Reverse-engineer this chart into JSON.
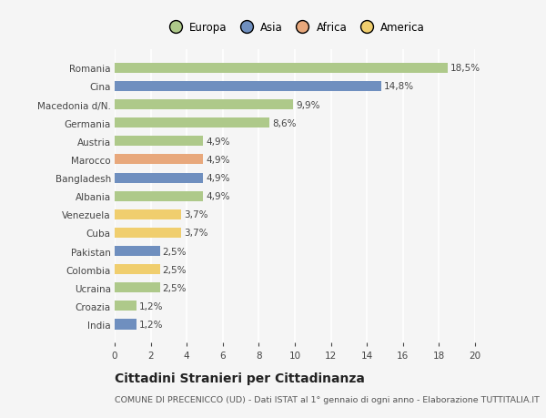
{
  "countries": [
    "Romania",
    "Cina",
    "Macedonia d/N.",
    "Germania",
    "Austria",
    "Marocco",
    "Bangladesh",
    "Albania",
    "Venezuela",
    "Cuba",
    "Pakistan",
    "Colombia",
    "Ucraina",
    "Croazia",
    "India"
  ],
  "values": [
    18.5,
    14.8,
    9.9,
    8.6,
    4.9,
    4.9,
    4.9,
    4.9,
    3.7,
    3.7,
    2.5,
    2.5,
    2.5,
    1.2,
    1.2
  ],
  "continents": [
    "Europa",
    "Asia",
    "Europa",
    "Europa",
    "Europa",
    "Africa",
    "Asia",
    "Europa",
    "America",
    "America",
    "Asia",
    "America",
    "Europa",
    "Europa",
    "Asia"
  ],
  "colors": {
    "Europa": "#aec98a",
    "Asia": "#6f8fbf",
    "Africa": "#e8a87c",
    "America": "#f0ce6e"
  },
  "xlim": [
    0,
    20
  ],
  "xticks": [
    0,
    2,
    4,
    6,
    8,
    10,
    12,
    14,
    16,
    18,
    20
  ],
  "title": "Cittadini Stranieri per Cittadinanza",
  "subtitle": "COMUNE DI PRECENICCO (UD) - Dati ISTAT al 1° gennaio di ogni anno - Elaborazione TUTTITALIA.IT",
  "background_color": "#f5f5f5",
  "bar_height": 0.55,
  "grid_color": "#ffffff",
  "label_fontsize": 7.5,
  "value_fontsize": 7.5,
  "title_fontsize": 10,
  "subtitle_fontsize": 6.8,
  "legend_fontsize": 8.5
}
